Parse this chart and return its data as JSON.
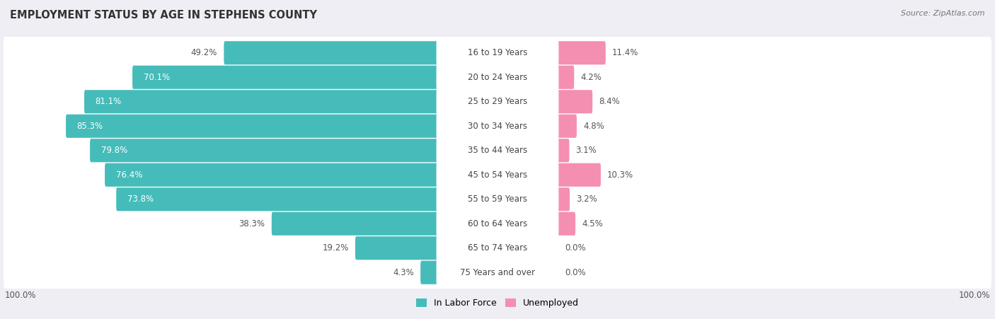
{
  "title": "EMPLOYMENT STATUS BY AGE IN STEPHENS COUNTY",
  "source": "Source: ZipAtlas.com",
  "categories": [
    "16 to 19 Years",
    "20 to 24 Years",
    "25 to 29 Years",
    "30 to 34 Years",
    "35 to 44 Years",
    "45 to 54 Years",
    "55 to 59 Years",
    "60 to 64 Years",
    "65 to 74 Years",
    "75 Years and over"
  ],
  "labor_force": [
    49.2,
    70.1,
    81.1,
    85.3,
    79.8,
    76.4,
    73.8,
    38.3,
    19.2,
    4.3
  ],
  "unemployed": [
    11.4,
    4.2,
    8.4,
    4.8,
    3.1,
    10.3,
    3.2,
    4.5,
    0.0,
    0.0
  ],
  "labor_color": "#45bcba",
  "unemployed_color": "#f48fb1",
  "bg_color": "#eeeef4",
  "row_color": "#ffffff",
  "title_fontsize": 10.5,
  "bar_label_fontsize": 8.5,
  "cat_label_fontsize": 8.5,
  "legend_fontsize": 9,
  "source_fontsize": 8
}
